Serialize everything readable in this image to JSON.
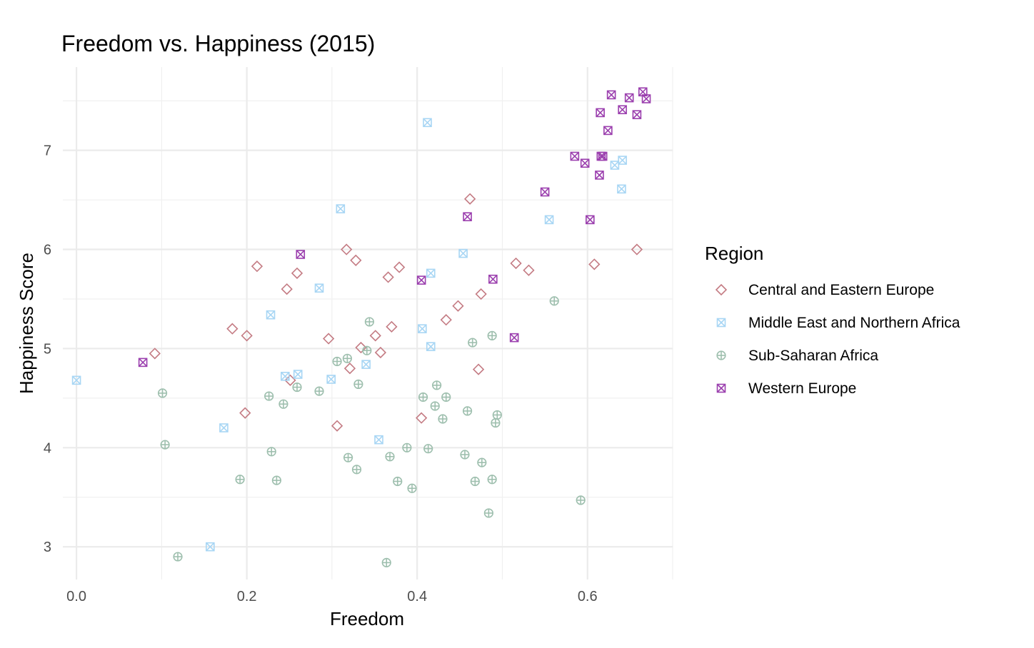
{
  "chart_data": {
    "type": "scatter",
    "title": "Freedom vs. Happiness (2015)",
    "xlabel": "Freedom",
    "ylabel": "Happiness Score",
    "xlim": [
      -0.016,
      0.7
    ],
    "ylim": [
      2.67,
      7.84
    ],
    "x_ticks": [
      0.0,
      0.2,
      0.4,
      0.6
    ],
    "x_tick_labels": [
      "0.0",
      "0.2",
      "0.4",
      "0.6"
    ],
    "y_ticks": [
      3,
      4,
      5,
      6,
      7
    ],
    "y_tick_labels": [
      "3",
      "4",
      "5",
      "6",
      "7"
    ],
    "grid": true,
    "legend_title": "Region",
    "legend_position": "right",
    "series": [
      {
        "name": "Central and Eastern Europe",
        "color": "#c47b83",
        "marker": "diamond",
        "points": [
          [
            0.092,
            4.95
          ],
          [
            0.183,
            5.2
          ],
          [
            0.198,
            4.35
          ],
          [
            0.2,
            5.13
          ],
          [
            0.212,
            5.83
          ],
          [
            0.247,
            5.6
          ],
          [
            0.251,
            4.68
          ],
          [
            0.259,
            5.76
          ],
          [
            0.296,
            5.1
          ],
          [
            0.306,
            4.22
          ],
          [
            0.317,
            6.0
          ],
          [
            0.321,
            4.8
          ],
          [
            0.328,
            5.89
          ],
          [
            0.334,
            5.01
          ],
          [
            0.351,
            5.13
          ],
          [
            0.357,
            4.96
          ],
          [
            0.366,
            5.72
          ],
          [
            0.37,
            5.22
          ],
          [
            0.379,
            5.82
          ],
          [
            0.405,
            4.3
          ],
          [
            0.434,
            5.29
          ],
          [
            0.448,
            5.43
          ],
          [
            0.462,
            6.51
          ],
          [
            0.472,
            4.79
          ],
          [
            0.475,
            5.55
          ],
          [
            0.516,
            5.86
          ],
          [
            0.531,
            5.79
          ],
          [
            0.608,
            5.85
          ],
          [
            0.658,
            6.0
          ]
        ]
      },
      {
        "name": "Middle East and Northern Africa",
        "color": "#a8d6f4",
        "marker": "square-x",
        "points": [
          [
            0.0,
            4.68
          ],
          [
            0.157,
            3.0
          ],
          [
            0.173,
            4.2
          ],
          [
            0.228,
            5.34
          ],
          [
            0.245,
            4.72
          ],
          [
            0.26,
            4.74
          ],
          [
            0.285,
            5.61
          ],
          [
            0.299,
            4.69
          ],
          [
            0.31,
            6.41
          ],
          [
            0.34,
            4.84
          ],
          [
            0.355,
            4.08
          ],
          [
            0.406,
            5.2
          ],
          [
            0.412,
            7.28
          ],
          [
            0.416,
            5.76
          ],
          [
            0.416,
            5.02
          ],
          [
            0.454,
            5.96
          ],
          [
            0.555,
            6.3
          ],
          [
            0.632,
            6.85
          ],
          [
            0.64,
            6.61
          ],
          [
            0.641,
            6.9
          ]
        ]
      },
      {
        "name": "Sub-Saharan Africa",
        "color": "#9ebfae",
        "marker": "circle-plus",
        "points": [
          [
            0.101,
            4.55
          ],
          [
            0.104,
            4.03
          ],
          [
            0.119,
            2.9
          ],
          [
            0.192,
            3.68
          ],
          [
            0.226,
            4.52
          ],
          [
            0.229,
            3.96
          ],
          [
            0.235,
            3.67
          ],
          [
            0.243,
            4.44
          ],
          [
            0.259,
            4.61
          ],
          [
            0.285,
            4.57
          ],
          [
            0.306,
            4.87
          ],
          [
            0.318,
            4.9
          ],
          [
            0.319,
            3.9
          ],
          [
            0.329,
            3.78
          ],
          [
            0.331,
            4.64
          ],
          [
            0.341,
            4.98
          ],
          [
            0.344,
            5.27
          ],
          [
            0.364,
            2.84
          ],
          [
            0.368,
            3.91
          ],
          [
            0.377,
            3.66
          ],
          [
            0.388,
            4.0
          ],
          [
            0.394,
            3.59
          ],
          [
            0.407,
            4.51
          ],
          [
            0.413,
            3.99
          ],
          [
            0.421,
            4.42
          ],
          [
            0.423,
            4.63
          ],
          [
            0.43,
            4.29
          ],
          [
            0.434,
            4.51
          ],
          [
            0.456,
            3.93
          ],
          [
            0.459,
            4.37
          ],
          [
            0.465,
            5.06
          ],
          [
            0.468,
            3.66
          ],
          [
            0.476,
            3.85
          ],
          [
            0.484,
            3.34
          ],
          [
            0.488,
            5.13
          ],
          [
            0.488,
            3.68
          ],
          [
            0.492,
            4.25
          ],
          [
            0.494,
            4.33
          ],
          [
            0.561,
            5.48
          ],
          [
            0.592,
            3.47
          ]
        ]
      },
      {
        "name": "Western Europe",
        "color": "#9b3fae",
        "marker": "square-x",
        "points": [
          [
            0.078,
            4.86
          ],
          [
            0.263,
            5.95
          ],
          [
            0.405,
            5.69
          ],
          [
            0.459,
            6.33
          ],
          [
            0.489,
            5.7
          ],
          [
            0.514,
            5.11
          ],
          [
            0.55,
            6.58
          ],
          [
            0.585,
            6.94
          ],
          [
            0.597,
            6.87
          ],
          [
            0.603,
            6.3
          ],
          [
            0.614,
            6.75
          ],
          [
            0.615,
            7.38
          ],
          [
            0.616,
            6.94
          ],
          [
            0.618,
            6.94
          ],
          [
            0.624,
            7.2
          ],
          [
            0.628,
            7.56
          ],
          [
            0.641,
            7.41
          ],
          [
            0.649,
            7.53
          ],
          [
            0.658,
            7.36
          ],
          [
            0.665,
            7.59
          ],
          [
            0.669,
            7.52
          ]
        ]
      }
    ]
  }
}
